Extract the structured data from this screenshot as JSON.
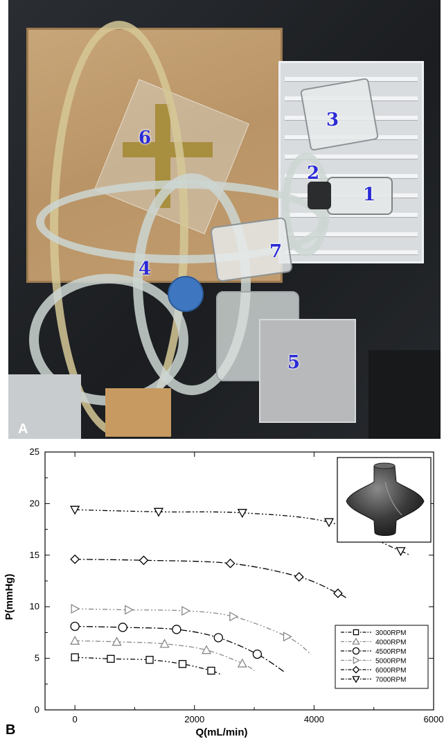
{
  "panel_a": {
    "label": "A",
    "component_labels": [
      "1",
      "2",
      "3",
      "4",
      "5",
      "6",
      "7"
    ]
  },
  "panel_b": {
    "label": "B"
  },
  "chart_data": {
    "type": "line",
    "xlabel": "Q(mL/min)",
    "ylabel": "P(mmHg)",
    "xlim": [
      -500,
      6000
    ],
    "ylim": [
      0,
      25
    ],
    "x_ticks": [
      0,
      2000,
      4000,
      6000
    ],
    "y_ticks": [
      0,
      5,
      10,
      15,
      20,
      25
    ],
    "grid": false,
    "legend_position": "bottom-right",
    "inset": "impeller",
    "series": [
      {
        "name": "3000RPM",
        "marker": "square",
        "color": "#000000",
        "x": [
          0,
          600,
          1250,
          1800,
          2280
        ],
        "y": [
          5.1,
          4.95,
          4.85,
          4.45,
          3.8
        ],
        "curve_end": [
          2450,
          3.4
        ]
      },
      {
        "name": "4000RPM",
        "marker": "triangle-up",
        "color": "#888888",
        "x": [
          0,
          700,
          1500,
          2200,
          2800
        ],
        "y": [
          6.7,
          6.6,
          6.4,
          5.8,
          4.5
        ],
        "curve_end": [
          3000,
          3.8
        ]
      },
      {
        "name": "4500RPM",
        "marker": "circle",
        "color": "#000000",
        "x": [
          0,
          800,
          1700,
          2400,
          3050
        ],
        "y": [
          8.1,
          8.0,
          7.8,
          7.0,
          5.4
        ],
        "curve_end": [
          3500,
          3.7
        ]
      },
      {
        "name": "5000RPM",
        "marker": "triangle-right",
        "color": "#888888",
        "x": [
          0,
          900,
          1850,
          2650,
          3550
        ],
        "y": [
          9.8,
          9.7,
          9.6,
          9.05,
          7.1
        ],
        "curve_end": [
          3950,
          5.4
        ]
      },
      {
        "name": "6000RPM",
        "marker": "diamond",
        "color": "#000000",
        "x": [
          0,
          1150,
          2600,
          3750,
          4400
        ],
        "y": [
          14.6,
          14.5,
          14.2,
          12.9,
          11.3
        ],
        "curve_end": [
          4550,
          10.8
        ]
      },
      {
        "name": "7000RPM",
        "marker": "triangle-down",
        "color": "#000000",
        "x": [
          0,
          1400,
          2800,
          4250,
          5450
        ],
        "y": [
          19.4,
          19.2,
          19.1,
          18.2,
          15.4
        ],
        "curve_end": [
          5550,
          15.1
        ]
      }
    ]
  }
}
